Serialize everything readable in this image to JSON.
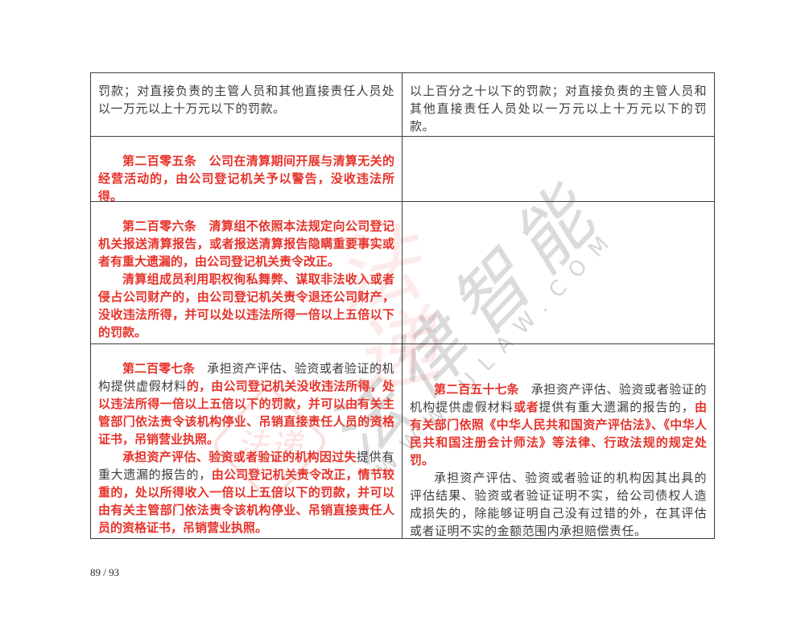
{
  "page": {
    "footer": "89 / 93"
  },
  "watermark": {
    "chinese": "法律智能",
    "latin": "WWW.ULAW.COM",
    "red_calligraphy": "法递",
    "seal": "法递"
  },
  "table": {
    "rows": [
      {
        "cells": [
          {
            "paragraphs": [
              {
                "indent": false,
                "runs": [
                  {
                    "color": "black",
                    "text": "罚款；对直接负责的主管人员和其他直接责任人员处以一万元以上十万元以下的罚款。"
                  }
                ]
              }
            ]
          },
          {
            "paragraphs": [
              {
                "indent": false,
                "runs": [
                  {
                    "color": "black",
                    "text": "以上百分之十以下的罚款；对直接负责的主管人员和其他直接责任人员处以一万元以上十万元以下的罚款。"
                  }
                ]
              }
            ]
          }
        ]
      },
      {
        "cells": [
          {
            "paragraphs": [
              {
                "indent": true,
                "runs": [
                  {
                    "color": "red",
                    "text": "第二百零五条　公司在清算期间开展与清算无关的经营活动的，由公司登记机关予以警告，没收违法所得。"
                  }
                ]
              }
            ]
          },
          {
            "paragraphs": []
          }
        ]
      },
      {
        "cells": [
          {
            "paragraphs": [
              {
                "indent": true,
                "runs": [
                  {
                    "color": "red",
                    "text": "第二百零六条　清算组不依照本法规定向公司登记机关报送清算报告，或者报送清算报告隐瞒重要事实或者有重大遗漏的，由公司登记机关责令改正。"
                  }
                ]
              },
              {
                "indent": true,
                "runs": [
                  {
                    "color": "red",
                    "text": "清算组成员利用职权徇私舞弊、谋取非法收入或者侵占公司财产的，由公司登记机关责令退还公司财产，没收违法所得，并可以处以违法所得一倍以上五倍以下的罚款。"
                  }
                ]
              }
            ]
          },
          {
            "paragraphs": []
          }
        ]
      },
      {
        "cells": [
          {
            "paragraphs": [
              {
                "indent": true,
                "runs": [
                  {
                    "color": "red",
                    "text": "第二百零七条　"
                  },
                  {
                    "color": "black",
                    "text": "承担资产评估、验资或者验证的机构提供虚假材料"
                  },
                  {
                    "color": "red",
                    "text": "的，由公司登记机关没收违法所得，处以违法所得一倍以上五倍以下的罚款，并可以由有关主管部门依法责令该机构停业、吊销直接责任人员的资格证书，吊销营业执照。"
                  }
                ]
              },
              {
                "indent": true,
                "runs": [
                  {
                    "color": "red",
                    "text": "承担资产评估、验资或者验证的机构因过失"
                  },
                  {
                    "color": "black",
                    "text": "提供有重大遗漏的报告的，"
                  },
                  {
                    "color": "red",
                    "text": "由公司登记机关责令改正，情节较重的，处以所得收入一倍以上五倍以下的罚款，并可以由有关主管部门依法责令该机构停业、吊销直接责任人员的资格证书，吊销营业执照。"
                  }
                ]
              }
            ]
          },
          {
            "pad_top": 26,
            "paragraphs": [
              {
                "indent": true,
                "runs": [
                  {
                    "color": "red",
                    "text": "第二百五十七条　"
                  },
                  {
                    "color": "black",
                    "text": "承担资产评估、验资或者验证的机构提供虚假材料"
                  },
                  {
                    "color": "red",
                    "text": "或者"
                  },
                  {
                    "color": "black",
                    "text": "提供有重大遗漏的报告的，"
                  },
                  {
                    "color": "red",
                    "text": "由有关部门依照《中华人民共和国资产评估法》、《中华人民共和国注册会计师法》等法律、行政法规的规定处罚。"
                  }
                ]
              },
              {
                "indent": true,
                "runs": [
                  {
                    "color": "black",
                    "text": "承担资产评估、验资或者验证的机构因其出具的评估结果、验资或者验证证明不实，给公司债权人造成损失的，除能够证明自己没有过错的外，在其评估或者证明不实的金额范围内承担赔偿责任。"
                  }
                ]
              }
            ]
          }
        ]
      }
    ]
  }
}
